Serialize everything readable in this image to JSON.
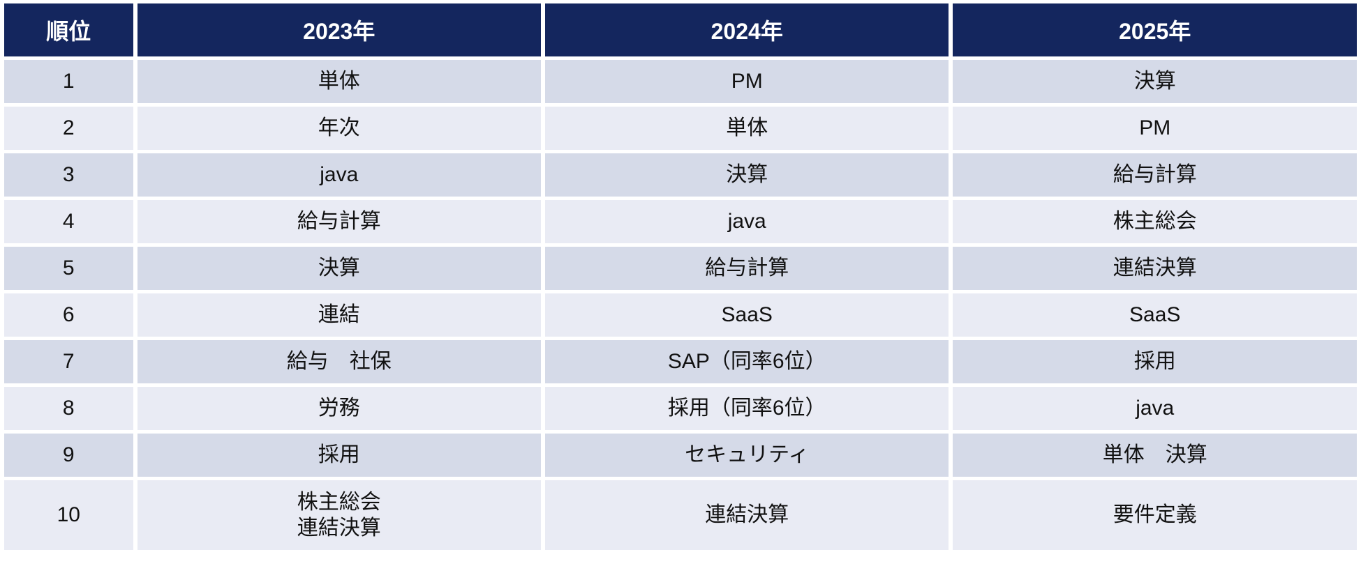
{
  "colors": {
    "header_bg": "#14265E",
    "header_text": "#FFFFFF",
    "row_odd_bg": "#D5DAE8",
    "row_even_bg": "#E9EBF4",
    "body_text": "#111111",
    "gutter": "#FFFFFF"
  },
  "table": {
    "headers": {
      "rank": "順位",
      "y2023": "2023年",
      "y2024": "2024年",
      "y2025": "2025年"
    },
    "rows": [
      {
        "rank": "1",
        "y2023": "単体",
        "y2024": "PM",
        "y2025": "決算"
      },
      {
        "rank": "2",
        "y2023": "年次",
        "y2024": "単体",
        "y2025": "PM"
      },
      {
        "rank": "3",
        "y2023": "java",
        "y2024": "決算",
        "y2025": "給与計算"
      },
      {
        "rank": "4",
        "y2023": "給与計算",
        "y2024": "java",
        "y2025": "株主総会"
      },
      {
        "rank": "5",
        "y2023": "決算",
        "y2024": "給与計算",
        "y2025": "連結決算"
      },
      {
        "rank": "6",
        "y2023": "連結",
        "y2024": "SaaS",
        "y2025": "SaaS"
      },
      {
        "rank": "7",
        "y2023": "給与　社保",
        "y2024": "SAP（同率6位）",
        "y2025": "採用"
      },
      {
        "rank": "8",
        "y2023": "労務",
        "y2024": "採用（同率6位）",
        "y2025": "java"
      },
      {
        "rank": "9",
        "y2023": "採用",
        "y2024": "セキュリティ",
        "y2025": "単体　決算"
      },
      {
        "rank": "10",
        "y2023": "株主総会\n連結決算",
        "y2024": "連結決算",
        "y2025": "要件定義"
      }
    ]
  },
  "chart_data": {
    "type": "table",
    "title": "",
    "columns": [
      "順位",
      "2023年",
      "2024年",
      "2025年"
    ],
    "rows": [
      [
        "1",
        "単体",
        "PM",
        "決算"
      ],
      [
        "2",
        "年次",
        "単体",
        "PM"
      ],
      [
        "3",
        "java",
        "決算",
        "給与計算"
      ],
      [
        "4",
        "給与計算",
        "java",
        "株主総会"
      ],
      [
        "5",
        "決算",
        "給与計算",
        "連結決算"
      ],
      [
        "6",
        "連結",
        "SaaS",
        "SaaS"
      ],
      [
        "7",
        "給与　社保",
        "SAP（同率6位）",
        "採用"
      ],
      [
        "8",
        "労務",
        "採用（同率6位）",
        "java"
      ],
      [
        "9",
        "採用",
        "セキュリティ",
        "単体　決算"
      ],
      [
        "10",
        "株主総会\n連結決算",
        "連結決算",
        "要件定義"
      ]
    ],
    "layout": {
      "header_style": "dark-navy",
      "banding": "alternating-rows",
      "grid": "white-gutters"
    }
  }
}
